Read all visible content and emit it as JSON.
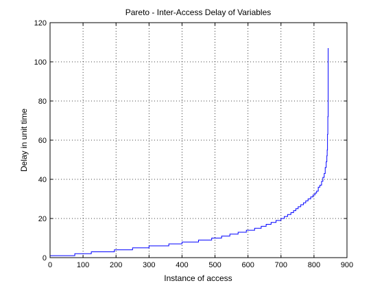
{
  "chart_data": {
    "type": "line",
    "title": "Pareto - Inter-Access Delay of Variables",
    "xlabel": "Instance of access",
    "ylabel": "Delay in unit time",
    "xlim": [
      0,
      900
    ],
    "ylim": [
      0,
      120
    ],
    "xticks": [
      0,
      100,
      200,
      300,
      400,
      500,
      600,
      700,
      800,
      900
    ],
    "yticks": [
      0,
      20,
      40,
      60,
      80,
      100,
      120
    ],
    "grid": true,
    "grid_style": "dotted",
    "line_color": "#0000ff",
    "line_style": "step",
    "series": [
      {
        "name": "",
        "x": [
          1,
          75,
          125,
          195,
          250,
          300,
          360,
          400,
          450,
          490,
          520,
          545,
          570,
          595,
          620,
          640,
          655,
          670,
          685,
          700,
          710,
          720,
          730,
          738,
          745,
          752,
          760,
          768,
          775,
          782,
          790,
          797,
          803,
          808,
          813,
          818,
          823,
          827,
          831,
          834,
          837,
          839,
          840,
          841,
          842,
          843
        ],
        "y": [
          1,
          2,
          3,
          4,
          5,
          6,
          7,
          8,
          9,
          10,
          11,
          12,
          13,
          14,
          15,
          16,
          17,
          18,
          19,
          20,
          21,
          22,
          23,
          24,
          25,
          26,
          27,
          28,
          29,
          30,
          31,
          32,
          33,
          34,
          36,
          37,
          39,
          41,
          43,
          46,
          49,
          52,
          55,
          63,
          72,
          107
        ]
      }
    ]
  }
}
